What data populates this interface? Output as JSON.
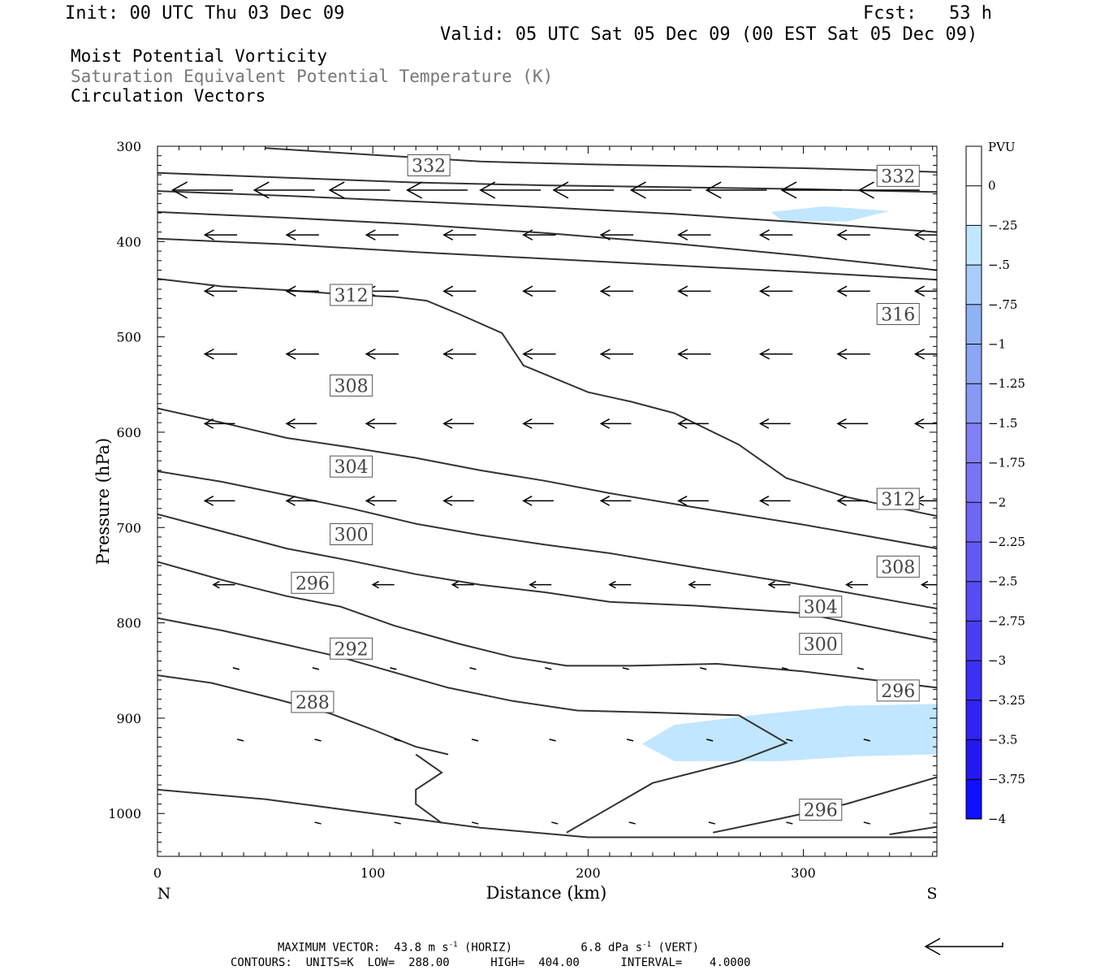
{
  "header": {
    "init": "Init: 00 UTC Thu 03 Dec 09",
    "fcst": "Fcst:   53 h",
    "valid": "Valid: 05 UTC Sat 05 Dec 09 (00 EST Sat 05 Dec 09)"
  },
  "fields": {
    "line1": "Moist Potential Vorticity",
    "line2": "Saturation Equivalent Potential Temperature (K)",
    "line3": "Circulation Vectors"
  },
  "footer": {
    "max_label": "MAXIMUM VECTOR:",
    "horiz": "43.8 m s",
    "horiz_tail": " (HORIZ)",
    "vert": "6.8 dPa s",
    "vert_tail": " (VERT)",
    "exp": "-1",
    "contours": "CONTOURS:  UNITS=K  LOW=  288.00      HIGH=  404.00      INTERVAL=    4.0000"
  },
  "colors": {
    "contour": "#333333",
    "pv_light": "#c1e6ff",
    "pv_medium": "#a9ccfa",
    "pv_dark": "#8fb2f5"
  },
  "chart_data": {
    "type": "contour",
    "xlabel": "Distance (km)",
    "ylabel": "Pressure (hPa)",
    "xlim": [
      0,
      362
    ],
    "ylim": [
      1045,
      300
    ],
    "x_ticks": [
      0,
      100,
      200,
      300
    ],
    "y_ticks": [
      300,
      400,
      500,
      600,
      700,
      800,
      900,
      1000
    ],
    "x_end_labels": {
      "left": "N",
      "right": "S"
    },
    "colorbar": {
      "unit": "PVU",
      "levels": [
        0,
        -0.25,
        -0.5,
        -0.75,
        -1,
        -1.25,
        -1.5,
        -1.75,
        -2,
        -2.25,
        -2.5,
        -2.75,
        -3,
        -3.25,
        -3.5,
        -3.75,
        -4
      ],
      "labels": [
        "0",
        "-.25",
        "-.5",
        "-.75",
        "-1",
        "-1.25",
        "-1.5",
        "-1.75",
        "-2",
        "-2.25",
        "-2.5",
        "-2.75",
        "-3",
        "-3.25",
        "-3.5",
        "-3.75",
        "-4"
      ],
      "colors": [
        "#ffffff",
        "#ffffff",
        "#c1e6ff",
        "#a9ccfa",
        "#8fb2f5",
        "#8da5f5",
        "#8799f5",
        "#8181f5",
        "#7a74f5",
        "#6f66f5",
        "#6358f5",
        "#564bf5",
        "#4a3ef5",
        "#3d31f5",
        "#3024f5",
        "#2418f5",
        "#1010ff"
      ]
    },
    "contours": [
      {
        "label": "288",
        "points": [
          [
            0,
            855
          ],
          [
            25,
            863
          ],
          [
            55,
            880
          ],
          [
            80,
            895
          ],
          [
            100,
            912
          ],
          [
            120,
            930
          ],
          [
            135,
            938
          ]
        ]
      },
      {
        "label": "292",
        "points": [
          [
            0,
            795
          ],
          [
            30,
            808
          ],
          [
            60,
            823
          ],
          [
            85,
            836
          ],
          [
            110,
            852
          ],
          [
            135,
            868
          ],
          [
            165,
            882
          ],
          [
            195,
            892
          ],
          [
            230,
            894
          ],
          [
            270,
            897
          ],
          [
            292,
            926
          ],
          [
            270,
            945
          ],
          [
            230,
            968
          ],
          [
            190,
            1020
          ]
        ]
      },
      {
        "label": "296",
        "points": [
          [
            0,
            736
          ],
          [
            30,
            755
          ],
          [
            60,
            772
          ],
          [
            85,
            783
          ],
          [
            110,
            803
          ],
          [
            140,
            822
          ],
          [
            165,
            836
          ],
          [
            190,
            845
          ],
          [
            220,
            845
          ],
          [
            260,
            843
          ],
          [
            300,
            851
          ],
          [
            362,
            868
          ]
        ]
      },
      {
        "label": "296",
        "points": [
          [
            258,
            1020
          ],
          [
            290,
            1005
          ],
          [
            320,
            990
          ],
          [
            362,
            962
          ]
        ]
      },
      {
        "label": "300",
        "points": [
          [
            0,
            686
          ],
          [
            30,
            704
          ],
          [
            60,
            722
          ],
          [
            90,
            735
          ],
          [
            120,
            749
          ],
          [
            150,
            760
          ],
          [
            180,
            768
          ],
          [
            210,
            778
          ],
          [
            250,
            782
          ],
          [
            300,
            790
          ],
          [
            362,
            818
          ]
        ]
      },
      {
        "label": "304",
        "points": [
          [
            0,
            641
          ],
          [
            30,
            652
          ],
          [
            60,
            666
          ],
          [
            90,
            680
          ],
          [
            120,
            696
          ],
          [
            150,
            708
          ],
          [
            180,
            718
          ],
          [
            210,
            727
          ],
          [
            250,
            742
          ],
          [
            300,
            760
          ],
          [
            362,
            785
          ]
        ]
      },
      {
        "label": "308",
        "points": [
          [
            0,
            575
          ],
          [
            30,
            590
          ],
          [
            60,
            606
          ],
          [
            90,
            616
          ],
          [
            120,
            627
          ],
          [
            150,
            640
          ],
          [
            180,
            651
          ],
          [
            210,
            664
          ],
          [
            250,
            679
          ],
          [
            300,
            697
          ],
          [
            362,
            722
          ]
        ]
      },
      {
        "label": "312",
        "points": [
          [
            0,
            439
          ],
          [
            30,
            447
          ],
          [
            60,
            451
          ],
          [
            90,
            456
          ],
          [
            110,
            458
          ],
          [
            125,
            462
          ],
          [
            140,
            476
          ],
          [
            160,
            496
          ],
          [
            170,
            530
          ],
          [
            200,
            558
          ],
          [
            220,
            568
          ],
          [
            240,
            580
          ],
          [
            270,
            613
          ],
          [
            292,
            648
          ],
          [
            320,
            668
          ],
          [
            362,
            688
          ]
        ]
      },
      {
        "label": "316",
        "points": [
          [
            0,
            397
          ],
          [
            60,
            403
          ],
          [
            120,
            411
          ],
          [
            180,
            418
          ],
          [
            240,
            425
          ],
          [
            300,
            432
          ],
          [
            362,
            440
          ]
        ]
      },
      {
        "label": "",
        "points": [
          [
            0,
            369
          ],
          [
            60,
            375
          ],
          [
            120,
            382
          ],
          [
            180,
            391
          ],
          [
            240,
            402
          ],
          [
            300,
            415
          ],
          [
            362,
            430
          ]
        ]
      },
      {
        "label": "",
        "points": [
          [
            0,
            347
          ],
          [
            60,
            352
          ],
          [
            120,
            358
          ],
          [
            180,
            364
          ],
          [
            240,
            371
          ],
          [
            300,
            380
          ],
          [
            362,
            390
          ]
        ]
      },
      {
        "label": "",
        "points": [
          [
            0,
            328
          ],
          [
            60,
            333
          ],
          [
            120,
            338
          ],
          [
            180,
            341
          ],
          [
            240,
            343
          ],
          [
            300,
            345
          ],
          [
            362,
            348
          ]
        ]
      },
      {
        "label": "332",
        "points": [
          [
            50,
            302
          ],
          [
            100,
            309
          ],
          [
            150,
            316
          ],
          [
            200,
            319
          ],
          [
            250,
            321
          ],
          [
            300,
            323
          ],
          [
            362,
            327
          ]
        ]
      },
      {
        "label": "",
        "points": [
          [
            120,
            938
          ],
          [
            132,
            957
          ],
          [
            120,
            975
          ],
          [
            120,
            990
          ],
          [
            132,
            1010
          ]
        ]
      },
      {
        "label": "",
        "points": [
          [
            0,
            975
          ],
          [
            50,
            985
          ],
          [
            100,
            1000
          ],
          [
            150,
            1015
          ],
          [
            200,
            1025
          ],
          [
            362,
            1025
          ]
        ]
      },
      {
        "label": "",
        "points": [
          [
            340,
            1022
          ],
          [
            362,
            1014
          ]
        ]
      }
    ],
    "contour_labels": [
      {
        "text": "288",
        "x": 72,
        "y": 883
      },
      {
        "text": "292",
        "x": 90,
        "y": 827
      },
      {
        "text": "296",
        "x": 72,
        "y": 758
      },
      {
        "text": "300",
        "x": 90,
        "y": 707
      },
      {
        "text": "304",
        "x": 90,
        "y": 636
      },
      {
        "text": "308",
        "x": 90,
        "y": 551
      },
      {
        "text": "312",
        "x": 90,
        "y": 456
      },
      {
        "text": "332",
        "x": 126,
        "y": 320
      },
      {
        "text": "332",
        "x": 344,
        "y": 331
      },
      {
        "text": "316",
        "x": 344,
        "y": 476
      },
      {
        "text": "312",
        "x": 344,
        "y": 670
      },
      {
        "text": "308",
        "x": 344,
        "y": 741
      },
      {
        "text": "304",
        "x": 308,
        "y": 783
      },
      {
        "text": "300",
        "x": 308,
        "y": 822
      },
      {
        "text": "296",
        "x": 344,
        "y": 871
      },
      {
        "text": "296",
        "x": 308,
        "y": 996
      }
    ],
    "pv_regions": [
      {
        "level": -0.25,
        "points": [
          [
            10,
            311
          ],
          [
            35,
            307
          ],
          [
            65,
            312
          ],
          [
            78,
            318
          ],
          [
            45,
            322
          ],
          [
            15,
            318
          ]
        ]
      },
      {
        "level": -0.25,
        "points": [
          [
            140,
            344
          ],
          [
            160,
            337
          ],
          [
            190,
            335
          ],
          [
            225,
            338
          ],
          [
            240,
            346
          ],
          [
            210,
            353
          ],
          [
            170,
            355
          ],
          [
            150,
            351
          ]
        ]
      },
      {
        "level": -0.25,
        "points": [
          [
            265,
            367
          ],
          [
            285,
            357
          ],
          [
            320,
            356
          ],
          [
            340,
            362
          ],
          [
            358,
            372
          ],
          [
            350,
            385
          ],
          [
            325,
            392
          ],
          [
            300,
            391
          ],
          [
            275,
            383
          ]
        ]
      },
      {
        "level": -0.5,
        "points": [
          [
            285,
            369
          ],
          [
            310,
            363
          ],
          [
            340,
            368
          ],
          [
            320,
            379
          ],
          [
            290,
            378
          ]
        ]
      },
      {
        "level": -0.25,
        "points": [
          [
            348,
            403
          ],
          [
            362,
            390
          ],
          [
            362,
            408
          ],
          [
            350,
            409
          ]
        ]
      },
      {
        "level": -0.25,
        "points": [
          [
            190,
            935
          ],
          [
            205,
            907
          ],
          [
            240,
            892
          ],
          [
            275,
            876
          ],
          [
            320,
            865
          ],
          [
            362,
            876
          ],
          [
            362,
            948
          ],
          [
            330,
            945
          ],
          [
            300,
            950
          ],
          [
            265,
            960
          ],
          [
            225,
            970
          ],
          [
            195,
            962
          ]
        ]
      },
      {
        "level": -0.5,
        "points": [
          [
            225,
            927
          ],
          [
            240,
            907
          ],
          [
            280,
            896
          ],
          [
            320,
            887
          ],
          [
            362,
            885
          ],
          [
            362,
            938
          ],
          [
            325,
            940
          ],
          [
            290,
            945
          ],
          [
            240,
            945
          ]
        ]
      },
      {
        "level": -0.25,
        "points": [
          [
            140,
            1020
          ],
          [
            180,
            1012
          ],
          [
            240,
            1011
          ],
          [
            300,
            1013
          ],
          [
            362,
            1020
          ],
          [
            340,
            1025
          ],
          [
            280,
            1026
          ],
          [
            220,
            1024
          ],
          [
            160,
            1023
          ]
        ]
      },
      {
        "level": -0.25,
        "points": [
          [
            0,
            972
          ],
          [
            8,
            978
          ],
          [
            0,
            978
          ]
        ]
      }
    ],
    "vector_rows": [
      {
        "p": 346,
        "len": 28,
        "cols": [
          7,
          45,
          80,
          116,
          150,
          184,
          220,
          255,
          290,
          326
        ]
      },
      {
        "p": 393,
        "len": 15,
        "cols": [
          22,
          60,
          97,
          133,
          170,
          206,
          242,
          280,
          316,
          352
        ]
      },
      {
        "p": 452,
        "len": 15,
        "cols": [
          22,
          60,
          97,
          133,
          170,
          206,
          242,
          280,
          316,
          352
        ]
      },
      {
        "p": 518,
        "len": 15,
        "cols": [
          22,
          60,
          97,
          133,
          170,
          206,
          242,
          280,
          316,
          352
        ]
      },
      {
        "p": 591,
        "len": 14,
        "cols": [
          22,
          60,
          97,
          133,
          170,
          206,
          242,
          280,
          316,
          352
        ]
      },
      {
        "p": 672,
        "len": 14,
        "cols": [
          22,
          60,
          97,
          133,
          170,
          206,
          242,
          280,
          316,
          352
        ]
      },
      {
        "p": 760,
        "len": 10,
        "cols": [
          26,
          63,
          100,
          137,
          173,
          210,
          247,
          284,
          320,
          355
        ]
      },
      {
        "p": 848,
        "len": 3,
        "cols": [
          35,
          72,
          108,
          145,
          180,
          216,
          252,
          290,
          325
        ]
      },
      {
        "p": 923,
        "len": 3,
        "cols": [
          37,
          73,
          110,
          146,
          182,
          218,
          255,
          292,
          328
        ]
      },
      {
        "p": 1010,
        "len": 3,
        "cols": [
          73,
          110,
          146,
          183,
          219,
          256,
          292,
          328
        ]
      }
    ]
  }
}
